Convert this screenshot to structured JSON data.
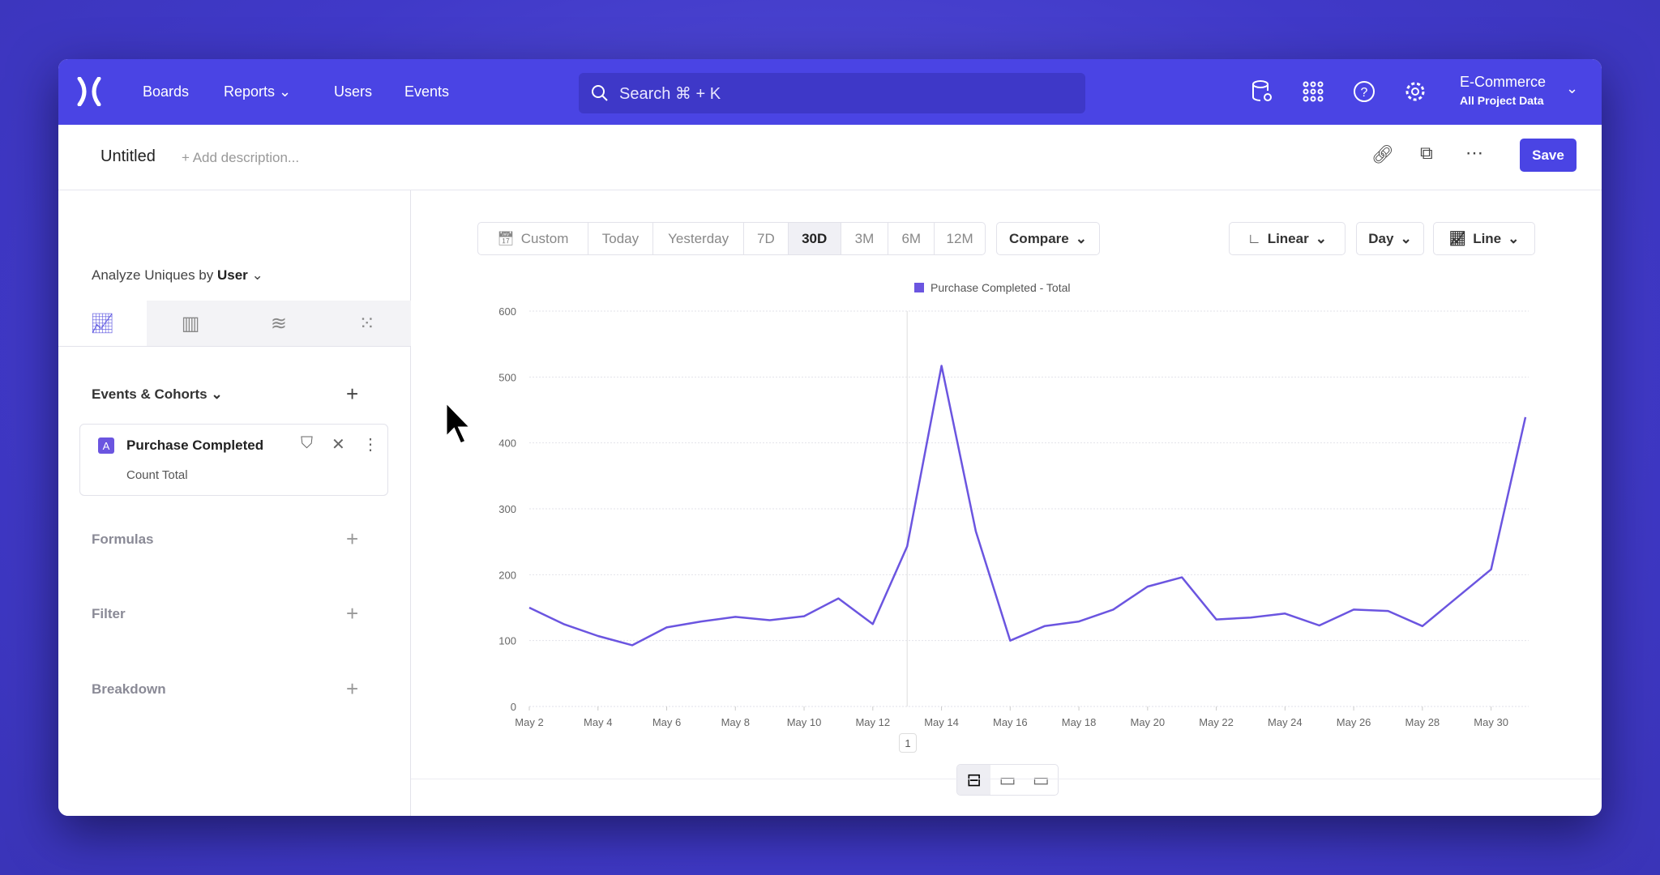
{
  "nav": {
    "links": [
      "Boards",
      "Reports",
      "Users",
      "Events"
    ],
    "search_placeholder": "Search ⌘ + K",
    "project": "E-Commerce",
    "project_sub": "All Project Data"
  },
  "header": {
    "title": "Untitled",
    "description_placeholder": "+ Add description...",
    "save": "Save"
  },
  "sidebar": {
    "analyze_label": "Analyze Uniques by",
    "analyze_value": "User",
    "events_title": "Events & Cohorts",
    "event": {
      "badge": "A",
      "name": "Purchase Completed",
      "measure": "Count Total"
    },
    "formulas": "Formulas",
    "filter": "Filter",
    "breakdown": "Breakdown"
  },
  "toolbar": {
    "ranges": [
      "Custom",
      "Today",
      "Yesterday",
      "7D",
      "30D",
      "3M",
      "6M",
      "12M"
    ],
    "active_range": "30D",
    "compare": "Compare",
    "scale": "Linear",
    "interval": "Day",
    "chart_type": "Line"
  },
  "colors": {
    "brand": "#4a44e4",
    "series": "#6b55e0"
  },
  "pagination": "1",
  "chart_data": {
    "type": "line",
    "legend": "Purchase Completed - Total",
    "legend_position": "top",
    "x": [
      "May 2",
      "May 3",
      "May 4",
      "May 5",
      "May 6",
      "May 7",
      "May 8",
      "May 9",
      "May 10",
      "May 11",
      "May 12",
      "May 13",
      "May 14",
      "May 15",
      "May 16",
      "May 17",
      "May 18",
      "May 19",
      "May 20",
      "May 21",
      "May 22",
      "May 23",
      "May 24",
      "May 25",
      "May 26",
      "May 27",
      "May 28",
      "May 29",
      "May 30",
      "May 31"
    ],
    "series": [
      {
        "name": "Purchase Completed - Total",
        "values": [
          150,
          125,
          107,
          93,
          120,
          129,
          136,
          131,
          137,
          164,
          125,
          243,
          517,
          266,
          100,
          122,
          129,
          147,
          182,
          196,
          132,
          135,
          141,
          123,
          147,
          145,
          122,
          165,
          208,
          439
        ]
      }
    ],
    "x_tick_labels": [
      "May 2",
      "May 4",
      "May 6",
      "May 8",
      "May 10",
      "May 12",
      "May 14",
      "May 16",
      "May 18",
      "May 20",
      "May 22",
      "May 24",
      "May 26",
      "May 28",
      "May 30"
    ],
    "y_ticks": [
      0,
      100,
      200,
      300,
      400,
      500,
      600
    ],
    "ylim": [
      0,
      600
    ],
    "grid": true
  }
}
